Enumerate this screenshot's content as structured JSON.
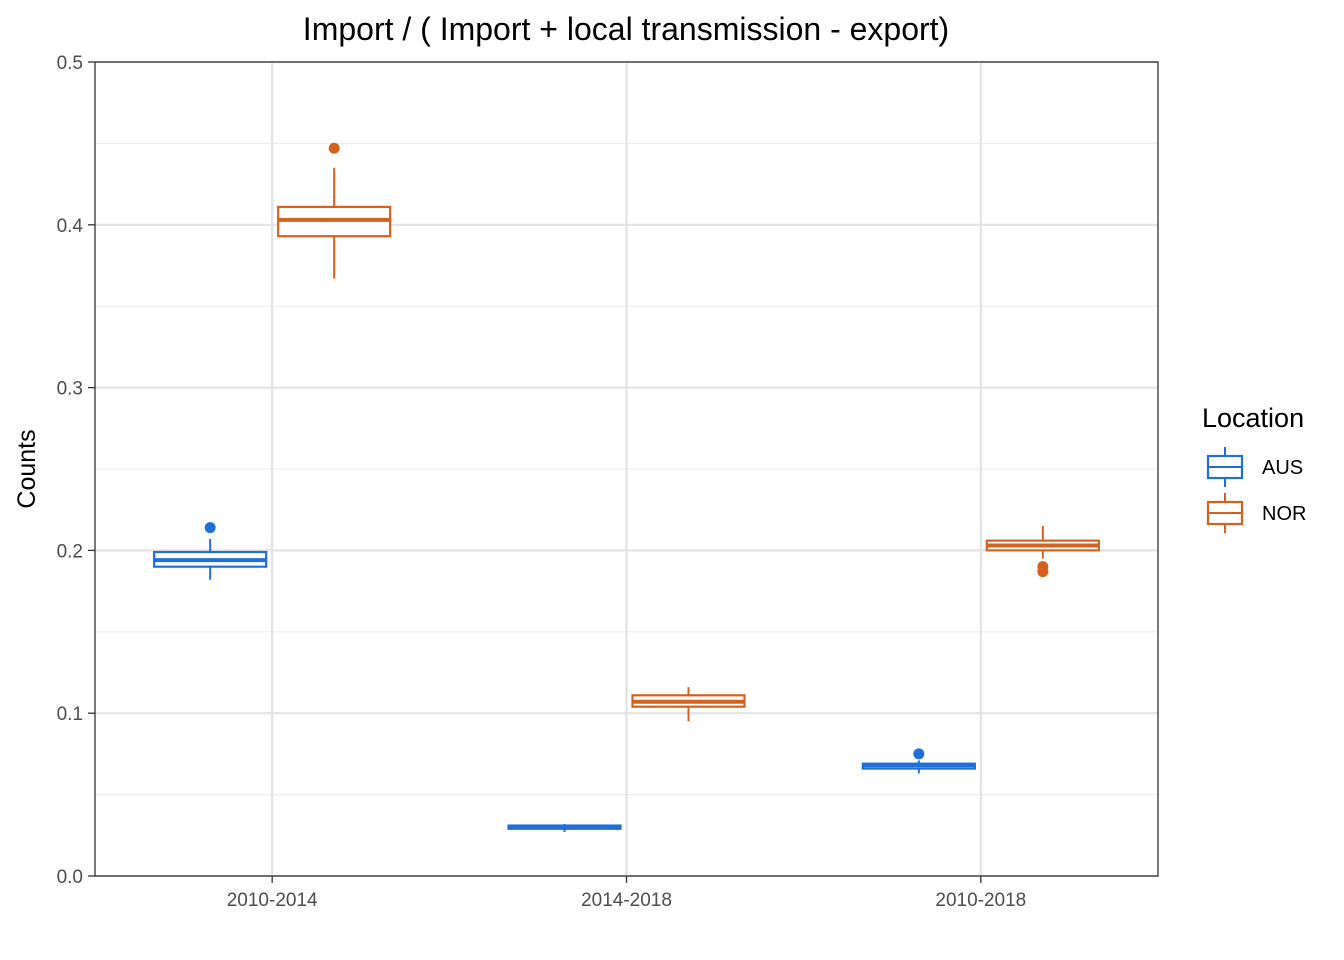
{
  "chart_data": {
    "type": "boxplot",
    "title": "Import / ( Import + local transmission - export)",
    "xlabel": "",
    "ylabel": "Counts",
    "ylim": [
      0,
      0.5
    ],
    "yticks": [
      "0.0",
      "0.1",
      "0.2",
      "0.3",
      "0.4",
      "0.5"
    ],
    "grid": true,
    "categories": [
      "2010-2014",
      "2014-2018",
      "2010-2018"
    ],
    "legend": {
      "title": "Location",
      "position": "right"
    },
    "series": [
      {
        "name": "AUS",
        "color": "#1f6fd6",
        "boxes": [
          {
            "min": 0.182,
            "q1": 0.19,
            "median": 0.194,
            "q3": 0.199,
            "max": 0.207,
            "outliers": [
              0.214
            ]
          },
          {
            "min": 0.027,
            "q1": 0.029,
            "median": 0.03,
            "q3": 0.031,
            "max": 0.032,
            "outliers": []
          },
          {
            "min": 0.063,
            "q1": 0.066,
            "median": 0.068,
            "q3": 0.069,
            "max": 0.071,
            "outliers": [
              0.075
            ]
          }
        ]
      },
      {
        "name": "NOR",
        "color": "#d4621f",
        "boxes": [
          {
            "min": 0.367,
            "q1": 0.393,
            "median": 0.403,
            "q3": 0.411,
            "max": 0.435,
            "outliers": [
              0.447
            ]
          },
          {
            "min": 0.095,
            "q1": 0.104,
            "median": 0.107,
            "q3": 0.111,
            "max": 0.116,
            "outliers": []
          },
          {
            "min": 0.195,
            "q1": 0.2,
            "median": 0.203,
            "q3": 0.206,
            "max": 0.215,
            "outliers": [
              0.19,
              0.187
            ]
          }
        ]
      }
    ]
  }
}
